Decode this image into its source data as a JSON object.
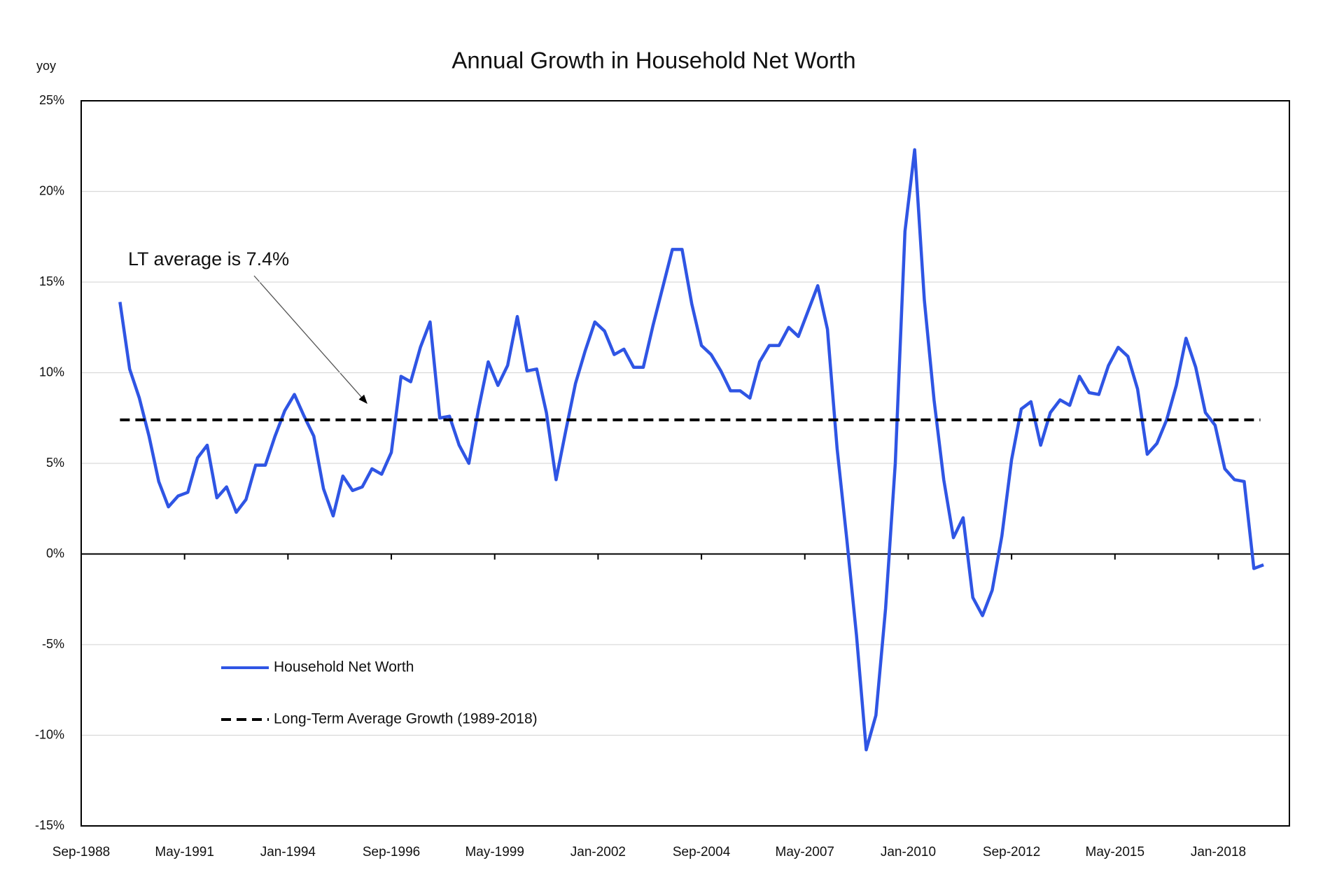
{
  "chart_data": {
    "type": "line",
    "title": "Annual Growth in Household Net Worth",
    "ylabel": "yoy",
    "annotation": "LT average is 7.4%",
    "xlim": [
      "Sep-1988",
      "Nov-2019"
    ],
    "xticks": [
      "Sep-1988",
      "May-1991",
      "Jan-1994",
      "Sep-1996",
      "May-1999",
      "Jan-2002",
      "Sep-2004",
      "May-2007",
      "Jan-2010",
      "Sep-2012",
      "May-2015",
      "Jan-2018"
    ],
    "ylim": [
      -15,
      25
    ],
    "yticks": [
      {
        "value": -15,
        "label": "-15%"
      },
      {
        "value": -10,
        "label": "-10%"
      },
      {
        "value": -5,
        "label": "-5%"
      },
      {
        "value": 0,
        "label": "0%"
      },
      {
        "value": 5,
        "label": "5%"
      },
      {
        "value": 10,
        "label": "10%"
      },
      {
        "value": 15,
        "label": "15%"
      },
      {
        "value": 20,
        "label": "20%"
      },
      {
        "value": 25,
        "label": "25%"
      }
    ],
    "grid": true,
    "legend": "lower-left",
    "x": [
      "Sep-1989",
      "Dec-1989",
      "Mar-1990",
      "Jun-1990",
      "Sep-1990",
      "Dec-1990",
      "Mar-1991",
      "Jun-1991",
      "Sep-1991",
      "Dec-1991",
      "Mar-1992",
      "Jun-1992",
      "Sep-1992",
      "Dec-1992",
      "Mar-1993",
      "Jun-1993",
      "Sep-1993",
      "Dec-1993",
      "Mar-1994",
      "Jun-1994",
      "Sep-1994",
      "Dec-1994",
      "Mar-1995",
      "Jun-1995",
      "Sep-1995",
      "Dec-1995",
      "Mar-1996",
      "Jun-1996",
      "Sep-1996",
      "Dec-1996",
      "Mar-1997",
      "Jun-1997",
      "Sep-1997",
      "Dec-1997",
      "Mar-1998",
      "Jun-1998",
      "Sep-1998",
      "Dec-1998",
      "Mar-1999",
      "Jun-1999",
      "Sep-1999",
      "Dec-1999",
      "Mar-2000",
      "Jun-2000",
      "Sep-2000",
      "Dec-2000",
      "Mar-2001",
      "Jun-2001",
      "Sep-2001",
      "Dec-2001",
      "Mar-2002",
      "Jun-2002",
      "Sep-2002",
      "Dec-2002",
      "Mar-2003",
      "Jun-2003",
      "Sep-2003",
      "Dec-2003",
      "Mar-2004",
      "Jun-2004",
      "Sep-2004",
      "Dec-2004",
      "Mar-2005",
      "Jun-2005",
      "Sep-2005",
      "Dec-2005",
      "Mar-2006",
      "Jun-2006",
      "Sep-2006",
      "Dec-2006",
      "Mar-2007",
      "Jun-2007",
      "Sep-2007",
      "Dec-2007",
      "Mar-2008",
      "Jun-2008",
      "Sep-2008",
      "Dec-2008",
      "Mar-2009",
      "Jun-2009",
      "Sep-2009",
      "Dec-2009",
      "Mar-2010",
      "Jun-2010",
      "Sep-2010",
      "Dec-2010",
      "Mar-2011",
      "Jun-2011",
      "Sep-2011",
      "Dec-2011",
      "Mar-2012",
      "Jun-2012",
      "Sep-2012",
      "Dec-2012",
      "Mar-2013",
      "Jun-2013",
      "Sep-2013",
      "Dec-2013",
      "Mar-2014",
      "Jun-2014",
      "Sep-2014",
      "Dec-2014",
      "Mar-2015",
      "Jun-2015",
      "Sep-2015",
      "Dec-2015",
      "Mar-2016",
      "Jun-2016",
      "Sep-2016",
      "Dec-2016",
      "Mar-2017",
      "Jun-2017",
      "Sep-2017",
      "Dec-2017",
      "Mar-2018",
      "Jun-2018",
      "Sep-2018",
      "Dec-2018",
      "Mar-2019"
    ],
    "series": [
      {
        "name": "Household Net Worth",
        "color": "#2f55e4",
        "dash": false,
        "values": [
          13.9,
          10.2,
          8.6,
          6.5,
          4.0,
          2.6,
          3.2,
          3.4,
          5.3,
          6.0,
          3.1,
          3.7,
          2.3,
          3.0,
          4.9,
          4.9,
          6.5,
          7.9,
          8.8,
          7.6,
          6.5,
          3.6,
          2.1,
          4.3,
          3.5,
          3.7,
          4.7,
          4.4,
          5.6,
          9.8,
          9.5,
          11.4,
          12.8,
          7.5,
          7.6,
          6.0,
          5.0,
          8.0,
          10.6,
          9.3,
          10.4,
          13.1,
          10.1,
          10.2,
          7.8,
          4.1,
          6.8,
          9.4,
          11.2,
          12.8,
          12.3,
          11.0,
          11.3,
          10.3,
          10.3,
          12.6,
          14.7,
          16.8,
          16.8,
          13.8,
          11.5,
          11.0,
          10.1,
          9.0,
          9.0,
          8.6,
          10.6,
          11.5,
          11.5,
          12.5,
          12.0,
          13.4,
          14.8,
          12.4,
          5.8,
          0.8,
          -4.5,
          -10.8,
          -8.9,
          -3.0,
          5.0,
          17.8,
          22.3,
          14.0,
          8.5,
          4.1,
          0.9,
          2.0,
          -2.4,
          -3.4,
          -2.0,
          1.0,
          5.2,
          8.0,
          8.4,
          6.0,
          7.8,
          8.5,
          8.2,
          9.8,
          8.9,
          8.8,
          10.4,
          11.4,
          10.9,
          9.1,
          5.5,
          6.1,
          7.4,
          9.3,
          11.9,
          10.3,
          7.8,
          7.1,
          4.7,
          4.1,
          4.0,
          -0.8,
          -0.6
        ]
      },
      {
        "name": "Long-Term Average Growth (1989-2018)",
        "color": "#000000",
        "dash": true,
        "x": [
          "Sep-1989",
          "Feb-2019"
        ],
        "values": [
          7.4,
          7.4
        ]
      }
    ]
  }
}
